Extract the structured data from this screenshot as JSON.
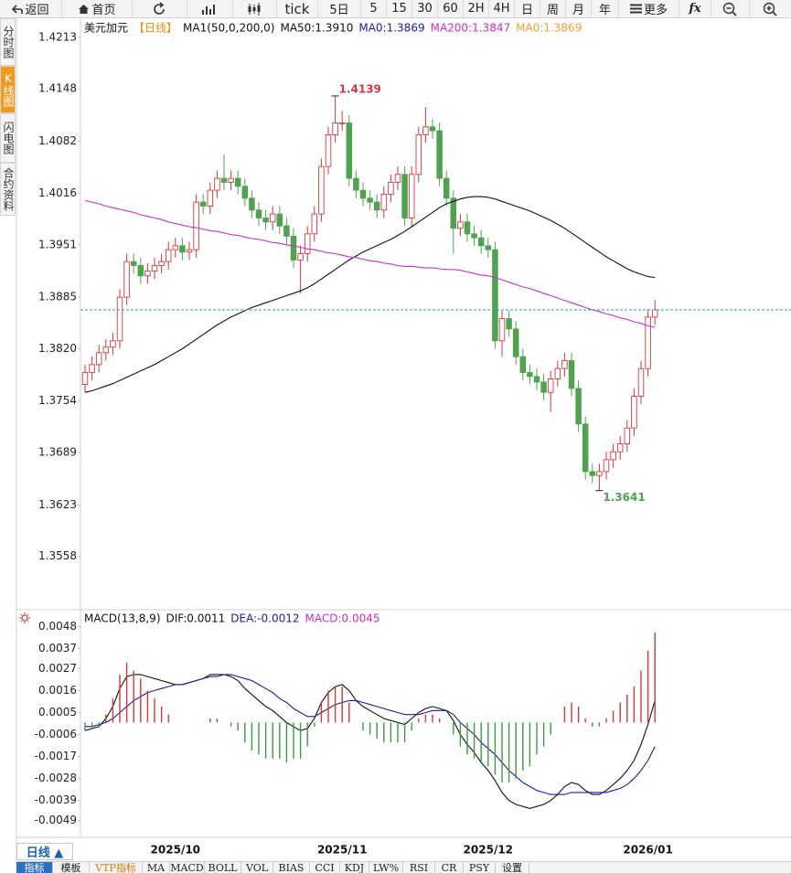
{
  "toolbar": [
    "返回",
    "首页",
    "tick",
    "5日",
    "5",
    "15",
    "30",
    "60",
    "2H",
    "4H",
    "日",
    "周",
    "月",
    "年",
    "更多",
    "fx"
  ],
  "side_tabs": [
    "分时图",
    "K线图",
    "闪电图",
    "合约资料"
  ],
  "chart_data": [
    {
      "type": "candlestick",
      "title": "美元加元",
      "period": "【日线】",
      "indicator": "MA1(50,0,200,0)",
      "ylim": [
        1.3493,
        1.4237
      ],
      "yticks": [
        1.4213,
        1.4148,
        1.4082,
        1.4016,
        1.3951,
        1.3885,
        {
          "value": 1.382,
          "label": "1.3820"
        },
        1.3754,
        1.3689,
        1.3623,
        1.3558
      ],
      "grid": false,
      "up_color": "#d9363e",
      "down_color": "#4fa24f",
      "last_price_color": "#2f9bb5",
      "ohlc": {
        "open": [
          1.3775,
          1.379,
          1.38,
          1.3815,
          1.3822,
          1.383,
          1.3885,
          1.393,
          1.3925,
          1.3912,
          1.3918,
          1.3925,
          1.393,
          1.3945,
          1.395,
          1.3942,
          1.3945,
          1.4005,
          1.4,
          1.402,
          1.4035,
          1.403,
          1.4035,
          1.4025,
          1.401,
          1.3995,
          1.3985,
          1.398,
          1.399,
          1.3975,
          1.3962,
          1.3932,
          1.394,
          1.3965,
          1.399,
          1.405,
          1.409,
          1.4105,
          1.4105,
          1.4035,
          1.402,
          1.401,
          1.4005,
          1.3995,
          1.4015,
          1.403,
          1.404,
          1.3985,
          1.404,
          1.409,
          1.41,
          1.4095,
          1.4035,
          1.401,
          1.3972,
          1.398,
          1.3965,
          1.396,
          1.395,
          1.3945,
          1.383,
          1.3858,
          1.3845,
          1.381,
          1.379,
          1.3785,
          1.3778,
          1.3765,
          1.3782,
          1.3795,
          1.3805,
          1.377,
          1.3725,
          1.3665,
          1.366,
          1.3665,
          1.368,
          1.369,
          1.37,
          1.372,
          1.376,
          1.3795,
          1.386
        ],
        "high": [
          1.38,
          1.381,
          1.3825,
          1.3832,
          1.384,
          1.3895,
          1.394,
          1.394,
          1.3935,
          1.3928,
          1.3935,
          1.394,
          1.3955,
          1.396,
          1.396,
          1.3955,
          1.4015,
          1.4015,
          1.403,
          1.4045,
          1.4065,
          1.4045,
          1.4045,
          1.4035,
          1.402,
          1.4005,
          1.3995,
          1.4,
          1.4,
          1.3985,
          1.3972,
          1.395,
          1.3975,
          1.4,
          1.406,
          1.41,
          1.4139,
          1.412,
          1.4115,
          1.4045,
          1.403,
          1.402,
          1.4015,
          1.4025,
          1.404,
          1.405,
          1.405,
          1.405,
          1.41,
          1.4125,
          1.411,
          1.4105,
          1.4045,
          1.402,
          1.399,
          1.399,
          1.3975,
          1.397,
          1.396,
          1.3955,
          1.3868,
          1.3868,
          1.3855,
          1.382,
          1.38,
          1.3795,
          1.3788,
          1.3792,
          1.3805,
          1.3815,
          1.3815,
          1.378,
          1.3735,
          1.3675,
          1.3675,
          1.369,
          1.37,
          1.371,
          1.373,
          1.377,
          1.3805,
          1.387,
          1.3882
        ],
        "low": [
          1.3765,
          1.378,
          1.379,
          1.3805,
          1.3812,
          1.382,
          1.3875,
          1.3915,
          1.3902,
          1.3902,
          1.3908,
          1.3915,
          1.392,
          1.3935,
          1.3932,
          1.3932,
          1.3935,
          1.399,
          1.399,
          1.401,
          1.402,
          1.402,
          1.4015,
          1.4,
          1.3985,
          1.3975,
          1.397,
          1.397,
          1.3965,
          1.3952,
          1.3922,
          1.389,
          1.393,
          1.3955,
          1.398,
          1.404,
          1.408,
          1.4095,
          1.4025,
          1.401,
          1.4,
          1.3995,
          1.3985,
          1.3985,
          1.4005,
          1.402,
          1.3975,
          1.3975,
          1.403,
          1.408,
          1.4085,
          1.4025,
          1.4,
          1.394,
          1.3962,
          1.3955,
          1.395,
          1.394,
          1.3935,
          1.382,
          1.381,
          1.3835,
          1.38,
          1.378,
          1.3775,
          1.3768,
          1.3755,
          1.374,
          1.3772,
          1.3785,
          1.376,
          1.3715,
          1.3655,
          1.365,
          1.3641,
          1.3655,
          1.367,
          1.368,
          1.369,
          1.371,
          1.375,
          1.3785,
          1.385
        ],
        "close": [
          1.379,
          1.38,
          1.3815,
          1.3822,
          1.383,
          1.3885,
          1.393,
          1.3925,
          1.3912,
          1.3918,
          1.3925,
          1.393,
          1.3945,
          1.395,
          1.3942,
          1.3945,
          1.4005,
          1.4,
          1.402,
          1.4035,
          1.403,
          1.4035,
          1.4025,
          1.401,
          1.3995,
          1.3985,
          1.398,
          1.399,
          1.3975,
          1.3962,
          1.3932,
          1.394,
          1.3965,
          1.399,
          1.405,
          1.409,
          1.4105,
          1.4105,
          1.4035,
          1.402,
          1.401,
          1.4005,
          1.3995,
          1.4015,
          1.403,
          1.404,
          1.3985,
          1.404,
          1.409,
          1.41,
          1.4095,
          1.4035,
          1.401,
          1.3972,
          1.398,
          1.3965,
          1.396,
          1.395,
          1.3945,
          1.383,
          1.3858,
          1.3845,
          1.381,
          1.379,
          1.3785,
          1.3778,
          1.3765,
          1.3782,
          1.3795,
          1.3805,
          1.377,
          1.3725,
          1.3665,
          1.366,
          1.3665,
          1.368,
          1.369,
          1.37,
          1.372,
          1.376,
          1.3795,
          1.386,
          1.3869
        ]
      },
      "series": [
        {
          "name": "MA50:1.3910",
          "color": "#111111",
          "values": [
            1.3765,
            1.3767,
            1.377,
            1.3773,
            1.3776,
            1.378,
            1.3784,
            1.3788,
            1.3792,
            1.3796,
            1.38,
            1.3805,
            1.381,
            1.3815,
            1.382,
            1.3826,
            1.3832,
            1.3838,
            1.3844,
            1.385,
            1.3855,
            1.386,
            1.3864,
            1.3868,
            1.3872,
            1.3875,
            1.3878,
            1.3881,
            1.3884,
            1.3887,
            1.389,
            1.3893,
            1.3897,
            1.3902,
            1.3908,
            1.3914,
            1.392,
            1.3926,
            1.3932,
            1.3937,
            1.3942,
            1.3946,
            1.395,
            1.3954,
            1.3958,
            1.3963,
            1.3968,
            1.3974,
            1.398,
            1.3986,
            1.3992,
            1.3998,
            1.4003,
            1.4006,
            1.4009,
            1.4011,
            1.4012,
            1.4012,
            1.4011,
            1.4009,
            1.4006,
            1.4003,
            1.4,
            1.3997,
            1.3994,
            1.399,
            1.3986,
            1.3982,
            1.3977,
            1.3972,
            1.3966,
            1.396,
            1.3954,
            1.3948,
            1.3942,
            1.3936,
            1.3931,
            1.3926,
            1.3921,
            1.3917,
            1.3914,
            1.3911,
            1.391
          ]
        },
        {
          "name": "MA200:1.3847",
          "color": "#cc2fcc",
          "values": [
            1.4007,
            1.4005,
            1.4003,
            1.4,
            1.3998,
            1.3996,
            1.3994,
            1.3992,
            1.3989,
            1.3987,
            1.3985,
            1.3983,
            1.398,
            1.3978,
            1.3976,
            1.3974,
            1.3973,
            1.3971,
            1.3969,
            1.3968,
            1.3966,
            1.3964,
            1.3963,
            1.3961,
            1.3959,
            1.3958,
            1.3956,
            1.3954,
            1.3953,
            1.3951,
            1.395,
            1.3948,
            1.3946,
            1.3945,
            1.3943,
            1.3941,
            1.394,
            1.3938,
            1.3936,
            1.3935,
            1.3933,
            1.3931,
            1.393,
            1.3928,
            1.3927,
            1.3925,
            1.3924,
            1.3924,
            1.3923,
            1.3922,
            1.3922,
            1.3921,
            1.392,
            1.392,
            1.3919,
            1.3917,
            1.3915,
            1.3913,
            1.3912,
            1.391,
            1.3907,
            1.3904,
            1.3901,
            1.3898,
            1.3896,
            1.3893,
            1.389,
            1.3887,
            1.3884,
            1.3881,
            1.3878,
            1.3875,
            1.3872,
            1.3869,
            1.3867,
            1.3864,
            1.3862,
            1.3859,
            1.3857,
            1.3854,
            1.3852,
            1.3849,
            1.3847
          ]
        }
      ],
      "legend_extra": [
        {
          "text": "MA0:1.3869",
          "color": "#1d1d9b"
        },
        {
          "text": "MA0:1.3869",
          "color": "#f0a030"
        }
      ],
      "annotations": [
        {
          "text": "1.4139",
          "x": 36,
          "at": "high",
          "color": "#d9363e"
        },
        {
          "text": "1.3641",
          "x": 74,
          "at": "low",
          "color": "#4fa24f"
        }
      ]
    },
    {
      "type": "macd",
      "title": "MACD(13,8,9)",
      "ylim": [
        -0.0057,
        0.0056
      ],
      "yticks": [
        0.0048,
        0.0037,
        0.0027,
        0.0016,
        0.0005,
        -0.0006,
        -0.0017,
        -0.0028,
        -0.0039,
        -0.0049
      ],
      "grid": false,
      "up_color": "#cc3a3a",
      "down_color": "#3f9a3f",
      "categories": [
        null,
        null,
        null,
        null,
        null,
        null,
        null,
        null,
        null,
        null,
        null,
        null,
        null,
        "2025/10",
        null,
        null,
        null,
        null,
        null,
        null,
        null,
        null,
        null,
        null,
        null,
        null,
        null,
        null,
        null,
        null,
        null,
        null,
        null,
        null,
        null,
        null,
        null,
        "2025/11",
        null,
        null,
        null,
        null,
        null,
        null,
        null,
        null,
        null,
        null,
        null,
        null,
        null,
        null,
        null,
        null,
        null,
        null,
        null,
        null,
        "2025/12",
        null,
        null,
        null,
        null,
        null,
        null,
        null,
        null,
        null,
        null,
        null,
        null,
        null,
        null,
        null,
        null,
        null,
        null,
        null,
        null,
        null,
        null,
        "2026/01",
        null
      ],
      "series": [
        {
          "name": "DIF:0.0011",
          "color": "#111111",
          "style": "line",
          "values": [
            -0.0004,
            -0.0003,
            -0.0002,
            0.0002,
            0.0008,
            0.0017,
            0.0023,
            0.0024,
            0.0024,
            0.0023,
            0.0022,
            0.0021,
            0.002,
            0.0019,
            0.0019,
            0.002,
            0.0021,
            0.0022,
            0.0024,
            0.0024,
            0.0024,
            0.0023,
            0.0021,
            0.0017,
            0.0014,
            0.0011,
            0.0008,
            0.0006,
            0.0003,
            0.0,
            -0.0002,
            -0.0004,
            -0.0003,
            0.0002,
            0.001,
            0.0015,
            0.0018,
            0.0019,
            0.0016,
            0.0011,
            0.0008,
            0.0006,
            0.0004,
            0.0002,
            0.0001,
            0.0,
            -0.0001,
            0.0002,
            0.0005,
            0.0007,
            0.0008,
            0.0007,
            0.0006,
            0.0001,
            -0.0006,
            -0.0011,
            -0.0015,
            -0.002,
            -0.0024,
            -0.0029,
            -0.0035,
            -0.0039,
            -0.0041,
            -0.0042,
            -0.0043,
            -0.0042,
            -0.0041,
            -0.0039,
            -0.0036,
            -0.0032,
            -0.003,
            -0.0031,
            -0.0034,
            -0.0036,
            -0.0036,
            -0.0034,
            -0.0031,
            -0.0028,
            -0.0024,
            -0.0019,
            -0.0011,
            -0.0001,
            0.0011
          ]
        },
        {
          "name": "DEA:-0.0012",
          "color": "#1d1d9b",
          "style": "line",
          "values": [
            -0.0002,
            -0.0002,
            -0.0001,
            0.0,
            0.0002,
            0.0005,
            0.0008,
            0.0011,
            0.0013,
            0.0015,
            0.0016,
            0.0017,
            0.0018,
            0.0019,
            0.0019,
            0.002,
            0.0021,
            0.0022,
            0.0023,
            0.0023,
            0.0024,
            0.0024,
            0.0023,
            0.0022,
            0.0021,
            0.0019,
            0.0017,
            0.0015,
            0.0012,
            0.001,
            0.0007,
            0.0005,
            0.0003,
            0.0003,
            0.0005,
            0.0007,
            0.0009,
            0.001,
            0.0011,
            0.0011,
            0.001,
            0.0009,
            0.0008,
            0.0007,
            0.0006,
            0.0005,
            0.0004,
            0.0004,
            0.0004,
            0.0005,
            0.0006,
            0.0006,
            0.0006,
            0.0004,
            0.0,
            -0.0003,
            -0.0006,
            -0.001,
            -0.0013,
            -0.0016,
            -0.002,
            -0.0024,
            -0.0027,
            -0.003,
            -0.0032,
            -0.0034,
            -0.0035,
            -0.0036,
            -0.0036,
            -0.0036,
            -0.0035,
            -0.0035,
            -0.0035,
            -0.0035,
            -0.0035,
            -0.0035,
            -0.0034,
            -0.0033,
            -0.0031,
            -0.0028,
            -0.0024,
            -0.0019,
            -0.0012
          ]
        },
        {
          "name": "MACD:0.0045",
          "color": "#cc2fcc",
          "style": "bar",
          "values": [
            -0.0004,
            -0.0002,
            -0.0002,
            0.0004,
            0.0012,
            0.0024,
            0.003,
            0.0026,
            0.0022,
            0.0016,
            0.0012,
            0.0008,
            0.0004,
            0.0,
            0.0,
            0.0,
            0.0,
            0.0,
            0.0002,
            0.0002,
            0.0,
            -0.0002,
            -0.0004,
            -0.001,
            -0.0014,
            -0.0016,
            -0.0018,
            -0.0018,
            -0.0018,
            -0.002,
            -0.0018,
            -0.0018,
            -0.0012,
            -0.0002,
            0.001,
            0.0016,
            0.0018,
            0.0018,
            0.001,
            0.0,
            -0.0004,
            -0.0006,
            -0.0008,
            -0.001,
            -0.001,
            -0.001,
            -0.001,
            -0.0004,
            0.0002,
            0.0004,
            0.0004,
            0.0002,
            0.0,
            -0.0006,
            -0.0012,
            -0.0016,
            -0.0018,
            -0.002,
            -0.0022,
            -0.0026,
            -0.003,
            -0.003,
            -0.0028,
            -0.0024,
            -0.0022,
            -0.0016,
            -0.0012,
            -0.0006,
            0.0,
            0.0008,
            0.001,
            0.0008,
            0.0002,
            -0.0002,
            -0.0002,
            0.0002,
            0.0006,
            0.001,
            0.0014,
            0.0018,
            0.0026,
            0.0036,
            0.0045
          ]
        }
      ]
    }
  ],
  "footer": {
    "period": "日线 ▲",
    "tabs": [
      "指标",
      "模板",
      "VTP指标",
      "MA",
      "MACD",
      "BOLL",
      "VOL",
      "BIAS",
      "CCI",
      "KDJ",
      "LW%",
      "RSI",
      "CR",
      "PSY",
      "设置"
    ]
  }
}
